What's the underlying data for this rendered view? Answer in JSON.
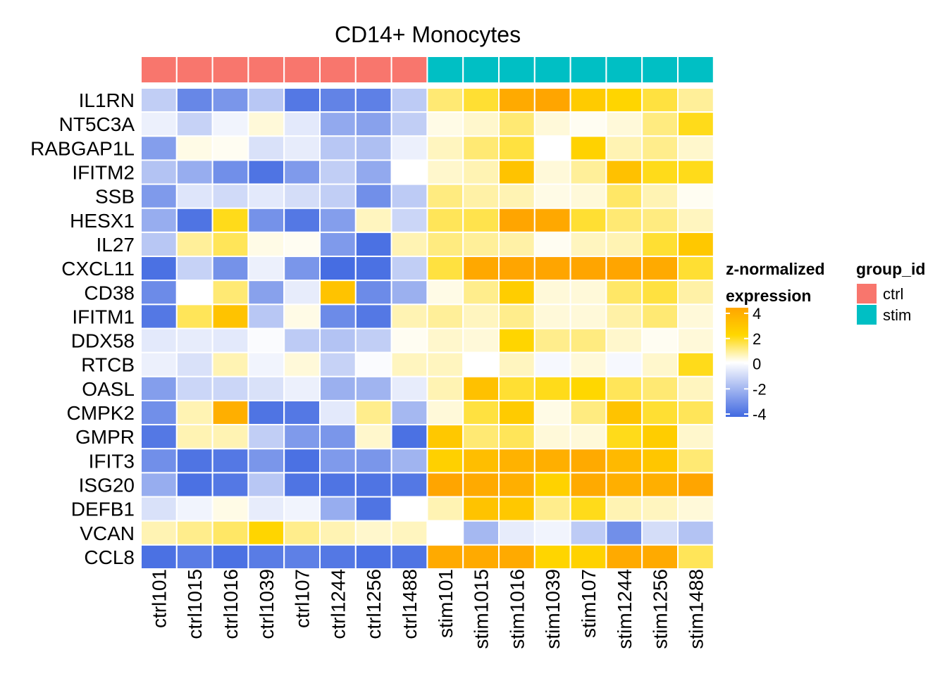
{
  "colors": {
    "low": "#4169E1",
    "mid": "#FFFFFF",
    "mid_high": "#FFD700",
    "high": "#FFA500",
    "ctrl": "#F8766D",
    "stim": "#00BFC4",
    "cell_border": "#FFFFFF"
  },
  "chart_data": {
    "type": "heatmap",
    "title": "CD14+ Monocytes",
    "columns": [
      "ctrl101",
      "ctrl1015",
      "ctrl1016",
      "ctrl1039",
      "ctrl107",
      "ctrl1244",
      "ctrl1256",
      "ctrl1488",
      "stim101",
      "stim1015",
      "stim1016",
      "stim1039",
      "stim107",
      "stim1244",
      "stim1256",
      "stim1488"
    ],
    "column_groups": [
      "ctrl",
      "ctrl",
      "ctrl",
      "ctrl",
      "ctrl",
      "ctrl",
      "ctrl",
      "ctrl",
      "stim",
      "stim",
      "stim",
      "stim",
      "stim",
      "stim",
      "stim",
      "stim"
    ],
    "rows": [
      "IL1RN",
      "NT5C3A",
      "RABGAP1L",
      "IFITM2",
      "SSB",
      "HESX1",
      "IL27",
      "CXCL11",
      "CD38",
      "IFITM1",
      "DDX58",
      "RTCB",
      "OASL",
      "CMPK2",
      "GMPR",
      "IFIT3",
      "ISG20",
      "DEFB1",
      "VCAN",
      "CCL8"
    ],
    "values": [
      [
        -1.3,
        -3.2,
        -2.8,
        -1.5,
        -3.6,
        -3.3,
        -3.4,
        -1.4,
        1.1,
        1.6,
        3.8,
        4.0,
        2.5,
        2.1,
        1.5,
        0.8
      ],
      [
        -0.4,
        -1.2,
        -0.3,
        0.3,
        -0.6,
        -2.3,
        -2.5,
        -1.3,
        0.2,
        0.4,
        1.1,
        0.3,
        0.1,
        0.3,
        1.0,
        1.8
      ],
      [
        -2.6,
        0.2,
        0.1,
        -0.8,
        -0.5,
        -1.5,
        -1.7,
        -0.4,
        0.5,
        1.1,
        1.5,
        0.0,
        2.2,
        0.6,
        0.9,
        0.4
      ],
      [
        -1.6,
        -2.2,
        -3.0,
        -3.7,
        -2.7,
        -1.3,
        -2.3,
        0.0,
        0.4,
        0.6,
        2.8,
        0.3,
        0.8,
        2.9,
        1.8,
        1.8
      ],
      [
        -2.7,
        -0.7,
        -1.0,
        -0.6,
        -0.9,
        -1.3,
        -3.0,
        -1.4,
        1.0,
        0.7,
        0.6,
        0.2,
        0.3,
        1.2,
        0.6,
        0.1
      ],
      [
        -2.2,
        -3.7,
        1.8,
        -2.9,
        -3.6,
        -2.6,
        0.5,
        -1.1,
        1.3,
        1.4,
        4.0,
        3.9,
        1.6,
        1.1,
        1.0,
        0.5
      ],
      [
        -1.5,
        0.8,
        1.3,
        0.2,
        0.1,
        -2.7,
        -3.8,
        0.6,
        1.0,
        0.8,
        0.7,
        0.1,
        0.5,
        0.6,
        1.6,
        2.6
      ],
      [
        -3.8,
        -1.2,
        -2.9,
        -0.4,
        -2.8,
        -3.9,
        -3.8,
        -1.3,
        1.5,
        3.9,
        4.0,
        4.0,
        4.0,
        4.0,
        3.8,
        1.6
      ],
      [
        -3.1,
        0.0,
        1.1,
        -2.5,
        -0.5,
        2.8,
        -3.1,
        -2.1,
        0.2,
        0.9,
        2.4,
        0.3,
        0.3,
        1.2,
        1.5,
        0.7
      ],
      [
        -3.6,
        1.3,
        2.8,
        -1.5,
        0.2,
        -3.1,
        -3.6,
        0.6,
        0.8,
        0.5,
        0.9,
        0.3,
        0.3,
        0.7,
        1.1,
        0.3
      ],
      [
        -0.6,
        -0.5,
        -0.6,
        -0.1,
        -1.4,
        -1.6,
        -1.3,
        0.1,
        0.4,
        0.3,
        2.1,
        0.9,
        1.0,
        0.4,
        0.1,
        0.3
      ],
      [
        -0.4,
        -0.8,
        0.6,
        -0.3,
        0.3,
        -1.2,
        -0.1,
        0.5,
        0.5,
        0.0,
        0.5,
        -0.2,
        0.3,
        -0.2,
        0.4,
        1.8
      ],
      [
        -2.6,
        -1.1,
        -1.1,
        -0.8,
        -0.4,
        -2.1,
        -2.0,
        -0.5,
        0.6,
        2.9,
        1.6,
        1.8,
        2.0,
        1.3,
        1.1,
        0.5
      ],
      [
        -3.0,
        0.6,
        3.6,
        -3.7,
        -3.6,
        -0.6,
        0.9,
        -1.9,
        0.3,
        1.5,
        2.5,
        0.2,
        1.0,
        2.8,
        1.6,
        1.3
      ],
      [
        -3.6,
        0.6,
        0.6,
        -1.3,
        -2.7,
        -2.8,
        0.4,
        -3.8,
        2.6,
        1.1,
        1.3,
        0.3,
        0.3,
        1.8,
        2.4,
        0.4
      ],
      [
        -3.0,
        -3.7,
        -3.6,
        -2.8,
        -3.8,
        -2.7,
        -2.8,
        -2.0,
        2.3,
        3.0,
        3.5,
        3.6,
        3.8,
        3.2,
        2.7,
        1.1
      ],
      [
        -2.2,
        -3.8,
        -3.6,
        -1.5,
        -3.7,
        -3.7,
        -3.7,
        -3.6,
        4.0,
        3.8,
        3.6,
        2.2,
        3.8,
        3.6,
        3.6,
        4.0
      ],
      [
        -0.8,
        -0.3,
        0.2,
        -0.5,
        -0.3,
        -2.2,
        -3.7,
        0.0,
        0.6,
        2.8,
        2.6,
        0.9,
        1.8,
        0.6,
        0.5,
        0.3
      ],
      [
        0.6,
        0.9,
        1.2,
        2.1,
        0.9,
        0.6,
        0.4,
        0.5,
        0.0,
        -1.9,
        -0.5,
        -0.3,
        -1.4,
        -3.0,
        -0.9,
        -1.6
      ],
      [
        -3.8,
        -3.5,
        -3.8,
        -3.5,
        -3.4,
        -3.6,
        -3.8,
        -3.7,
        3.8,
        3.8,
        3.8,
        2.1,
        2.2,
        3.8,
        3.8,
        1.3
      ]
    ],
    "zlim": [
      -4,
      4
    ],
    "legend": {
      "continuous": {
        "title_line1": "z-normalized",
        "title_line2": "expression",
        "ticks": [
          4,
          2,
          0,
          -2,
          -4
        ]
      },
      "group": {
        "title": "group_id",
        "entries": [
          "ctrl",
          "stim"
        ]
      }
    },
    "legend_position": "right"
  }
}
